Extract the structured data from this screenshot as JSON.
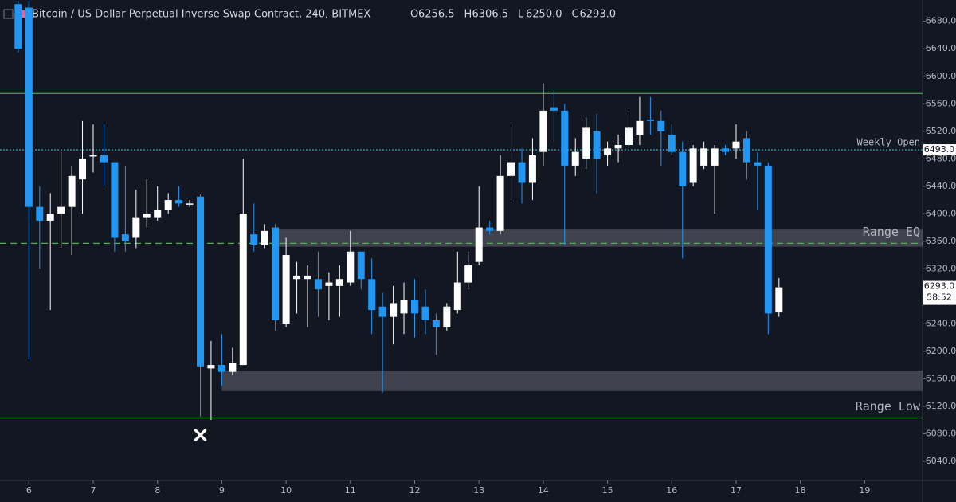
{
  "chart_data": {
    "type": "candlestick",
    "title": "Bitcoin / US Dollar Perpetual Inverse Swap Contract, 240, BITMEX",
    "ohlc_legend": [
      {
        "label": "O",
        "value": "6256.5"
      },
      {
        "label": "H",
        "value": "6306.5"
      },
      {
        "label": "L",
        "value": "6250.0"
      },
      {
        "label": "C",
        "value": "6293.0"
      }
    ],
    "x": [
      5.833,
      6,
      6.167,
      6.333,
      6.5,
      6.667,
      6.833,
      7,
      7.167,
      7.333,
      7.5,
      7.667,
      7.833,
      8,
      8.167,
      8.333,
      8.5,
      8.667,
      8.833,
      9,
      9.167,
      9.333,
      9.5,
      9.667,
      9.833,
      10,
      10.167,
      10.333,
      10.5,
      10.667,
      10.833,
      11,
      11.167,
      11.333,
      11.5,
      11.667,
      11.833,
      12,
      12.167,
      12.333,
      12.5,
      12.667,
      12.833,
      13,
      13.167,
      13.333,
      13.5,
      13.667,
      13.833,
      14,
      14.167,
      14.333,
      14.5,
      14.667,
      14.833,
      15,
      15.167,
      15.333,
      15.5,
      15.667,
      15.833,
      16,
      16.167,
      16.333,
      16.5,
      16.667,
      16.833,
      17,
      17.167,
      17.333,
      17.5,
      17.667
    ],
    "open": [
      6705,
      6700,
      6410,
      6390,
      6400,
      6410,
      6450,
      6485,
      6485,
      6475,
      6370,
      6365,
      6395,
      6395,
      6405,
      6420,
      6415,
      6425,
      6175,
      6180,
      6170,
      6180,
      6370,
      6355,
      6380,
      6240,
      6305,
      6305,
      6305,
      6295,
      6295,
      6300,
      6345,
      6305,
      6265,
      6250,
      6255,
      6275,
      6265,
      6245,
      6235,
      6260,
      6300,
      6330,
      6380,
      6375,
      6455,
      6475,
      6445,
      6490,
      6555,
      6550,
      6470,
      6480,
      6520,
      6485,
      6495,
      6500,
      6515,
      6537,
      6535,
      6515,
      6490,
      6445,
      6470,
      6470,
      6495,
      6495,
      6510,
      6475,
      6470,
      6256.5
    ],
    "high": [
      6710,
      6710,
      6440,
      6430,
      6490,
      6470,
      6535,
      6530,
      6530,
      6475,
      6470,
      6435,
      6450,
      6440,
      6430,
      6440,
      6420,
      6428,
      6215,
      6225,
      6205,
      6480,
      6415,
      6385,
      6385,
      6365,
      6330,
      6325,
      6345,
      6315,
      6325,
      6375,
      6345,
      6335,
      6285,
      6295,
      6300,
      6305,
      6290,
      6255,
      6270,
      6345,
      6345,
      6440,
      6390,
      6485,
      6530,
      6495,
      6510,
      6590,
      6580,
      6560,
      6510,
      6540,
      6545,
      6505,
      6515,
      6550,
      6570,
      6570,
      6550,
      6530,
      6505,
      6500,
      6505,
      6500,
      6500,
      6530,
      6520,
      6490,
      6475,
      6306.5
    ],
    "low": [
      6635,
      6188,
      6320,
      6260,
      6350,
      6340,
      6400,
      6460,
      6440,
      6345,
      6345,
      6350,
      6380,
      6390,
      6400,
      6410,
      6410,
      6105,
      6100,
      6150,
      6165,
      6180,
      6345,
      6350,
      6230,
      6235,
      6255,
      6235,
      6250,
      6245,
      6250,
      6295,
      6290,
      6225,
      6140,
      6210,
      6225,
      6220,
      6225,
      6195,
      6230,
      6255,
      6290,
      6325,
      6370,
      6370,
      6420,
      6415,
      6420,
      6470,
      6505,
      6355,
      6455,
      6465,
      6430,
      6470,
      6475,
      6495,
      6500,
      6515,
      6470,
      6485,
      6335,
      6440,
      6465,
      6400,
      6485,
      6480,
      6450,
      6405,
      6225,
      6250
    ],
    "close": [
      6640,
      6410,
      6390,
      6400,
      6410,
      6455,
      6480,
      6485,
      6475,
      6365,
      6360,
      6395,
      6400,
      6405,
      6420,
      6415,
      6415,
      6178,
      6180,
      6170,
      6183,
      6400,
      6355,
      6375,
      6245,
      6340,
      6310,
      6310,
      6290,
      6300,
      6305,
      6345,
      6305,
      6260,
      6250,
      6270,
      6275,
      6255,
      6245,
      6235,
      6265,
      6300,
      6325,
      6380,
      6375,
      6455,
      6475,
      6445,
      6485,
      6550,
      6550,
      6470,
      6490,
      6525,
      6480,
      6495,
      6500,
      6525,
      6535,
      6535,
      6520,
      6490,
      6440,
      6495,
      6495,
      6495,
      6490,
      6505,
      6475,
      6470,
      6255,
      6293
    ],
    "up_color": "#ffffff",
    "down_color": "#2196f3",
    "xlim": [
      5.55,
      19.9
    ],
    "ylim": [
      6012,
      6711
    ],
    "xticks": [
      6,
      7,
      8,
      9,
      10,
      11,
      12,
      13,
      14,
      15,
      16,
      17,
      18,
      19
    ],
    "yticks": [
      {
        "value": 6040,
        "label": "6040.0"
      },
      {
        "value": 6080,
        "label": "6080.0"
      },
      {
        "value": 6120,
        "label": "6120.0"
      },
      {
        "value": 6160,
        "label": "6160.0"
      },
      {
        "value": 6200,
        "label": "6200.0"
      },
      {
        "value": 6240,
        "label": "6240.0"
      },
      {
        "value": 6280,
        "label": "6280.0"
      },
      {
        "value": 6320,
        "label": "6320.0"
      },
      {
        "value": 6360,
        "label": "6360.0"
      },
      {
        "value": 6400,
        "label": "6400.0"
      },
      {
        "value": 6440,
        "label": "6440.0"
      },
      {
        "value": 6480,
        "label": "6480.0"
      },
      {
        "value": 6520,
        "label": "6520.0"
      },
      {
        "value": 6560,
        "label": "6560.0"
      },
      {
        "value": 6600,
        "label": "6600.0"
      },
      {
        "value": 6640,
        "label": "6640.0"
      },
      {
        "value": 6680,
        "label": "6680.0"
      }
    ],
    "hlines": [
      {
        "value": 6575,
        "color": "#4caf50",
        "style": "solid"
      },
      {
        "value": 6357,
        "color": "#4caf50",
        "style": "dashed",
        "label": "Range EQ"
      },
      {
        "value": 6103,
        "color": "#4caf50",
        "style": "solid",
        "label": "Range Low"
      },
      {
        "value": 6493,
        "color": "#26c6da",
        "style": "dotted",
        "label": "Weekly Open",
        "price_label": "6493.0"
      }
    ],
    "zones": [
      {
        "x_from": 9.83,
        "y_from": 6352,
        "y_to": 6377
      },
      {
        "x_from": 9.0,
        "y_from": 6142,
        "y_to": 6172
      }
    ],
    "markers": [
      {
        "x": 8.667,
        "y": 6078
      }
    ],
    "last_price": {
      "value": 6293,
      "label": "6293.0",
      "countdown": "58:52"
    }
  }
}
